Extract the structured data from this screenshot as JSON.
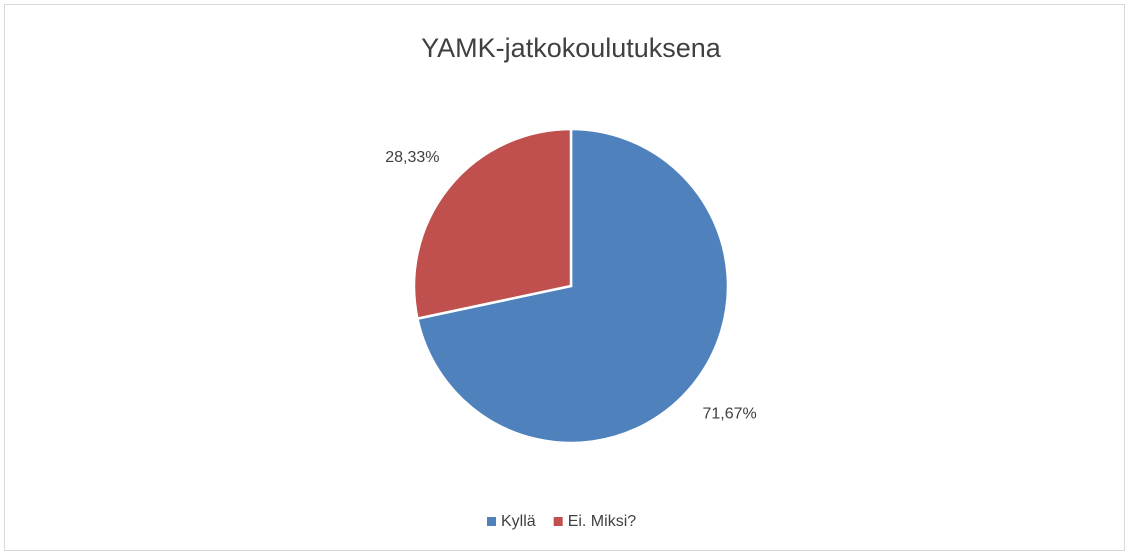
{
  "chart_data": {
    "type": "pie",
    "title": "YAMK-jatkokoulutuksena",
    "series": [
      {
        "name": "Kyllä",
        "color": "#4f81bd",
        "values": [
          71.67
        ],
        "value_labels": [
          "71,67%"
        ]
      },
      {
        "name": "Ei. Miksi?",
        "color": "#c0504d",
        "values": [
          28.33
        ],
        "value_labels": [
          "28,33%"
        ]
      }
    ],
    "legend": "bottom"
  }
}
